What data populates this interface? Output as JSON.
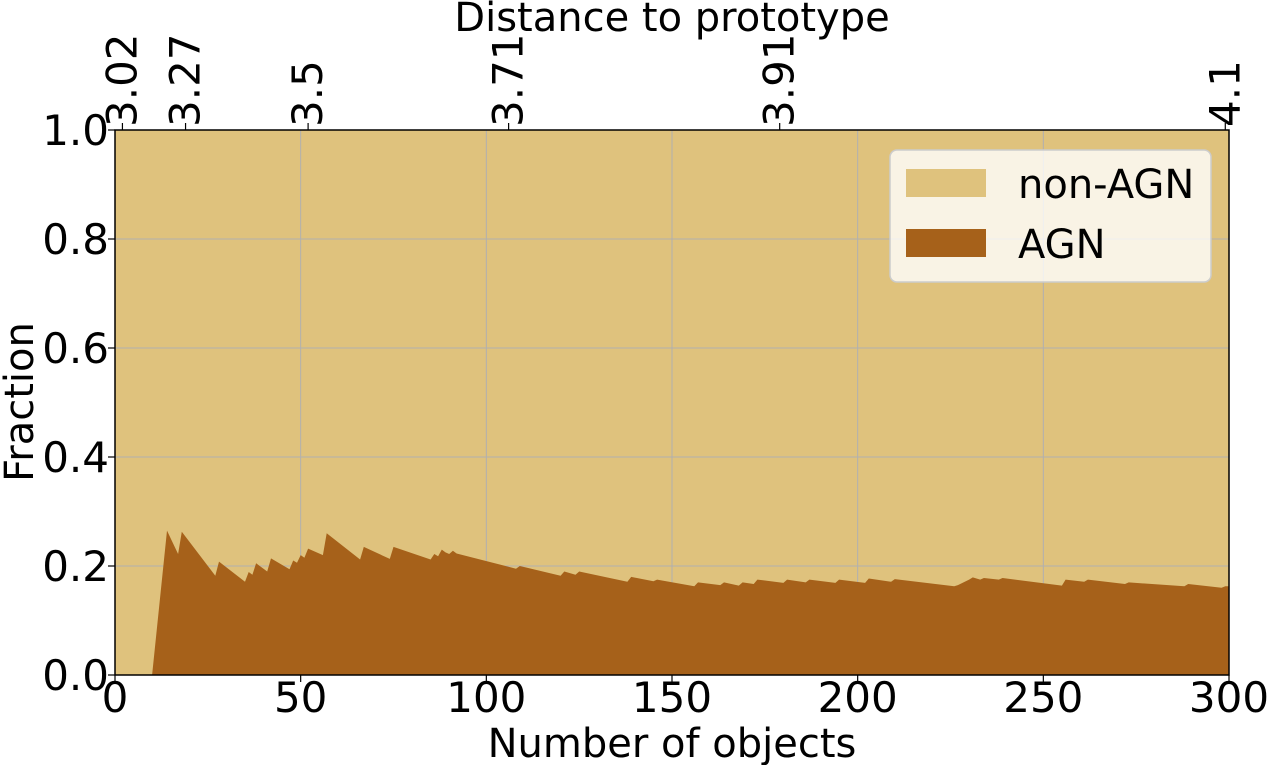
{
  "chart_data": {
    "type": "area",
    "xlabel": "Number of objects",
    "ylabel": "Fraction",
    "top_xlabel": "Distance to prototype",
    "xlim": [
      0,
      300
    ],
    "ylim": [
      0,
      1
    ],
    "xticks": [
      0,
      50,
      100,
      150,
      200,
      250,
      300
    ],
    "yticks": [
      0.0,
      0.2,
      0.4,
      0.6,
      0.8,
      1.0
    ],
    "xtick_labels": [
      "0",
      "50",
      "100",
      "150",
      "200",
      "250",
      "300"
    ],
    "ytick_labels": [
      "0.0",
      "0.2",
      "0.4",
      "0.6",
      "0.8",
      "1.0"
    ],
    "top_ticks": [
      {
        "x": 2,
        "label": "3.02"
      },
      {
        "x": 19,
        "label": "3.27"
      },
      {
        "x": 52,
        "label": "3.5"
      },
      {
        "x": 106,
        "label": "3.71"
      },
      {
        "x": 179,
        "label": "3.91"
      },
      {
        "x": 299,
        "label": "4.1"
      }
    ],
    "grid": true,
    "legend_position": "top-right",
    "colors": {
      "non_agn": "#dfc27d",
      "agn": "#a6611a"
    },
    "series": [
      {
        "name": "non-AGN",
        "type": "stacked-top"
      },
      {
        "name": "AGN",
        "x": [
          0,
          10,
          14,
          17,
          18,
          27,
          28,
          35,
          36,
          37,
          38,
          39,
          40,
          41,
          42,
          47,
          48,
          49,
          50,
          51,
          52,
          56,
          57,
          66,
          67,
          74,
          75,
          85,
          86,
          87,
          88,
          89,
          90,
          91,
          92,
          108,
          109,
          120,
          121,
          124,
          125,
          138,
          139,
          145,
          146,
          156,
          157,
          163,
          164,
          168,
          169,
          172,
          173,
          180,
          181,
          186,
          187,
          194,
          195,
          202,
          203,
          209,
          210,
          226,
          227,
          230,
          231,
          233,
          234,
          238,
          239,
          255,
          256,
          261,
          262,
          272,
          273,
          288,
          289,
          298,
          299,
          300
        ],
        "values": [
          0,
          0,
          0.265,
          0.222,
          0.263,
          0.182,
          0.208,
          0.171,
          0.189,
          0.184,
          0.205,
          0.2,
          0.195,
          0.19,
          0.214,
          0.194,
          0.21,
          0.206,
          0.22,
          0.215,
          0.232,
          0.22,
          0.26,
          0.212,
          0.235,
          0.213,
          0.235,
          0.212,
          0.222,
          0.218,
          0.23,
          0.225,
          0.222,
          0.228,
          0.223,
          0.195,
          0.2,
          0.182,
          0.19,
          0.184,
          0.19,
          0.171,
          0.18,
          0.172,
          0.175,
          0.163,
          0.17,
          0.165,
          0.17,
          0.164,
          0.17,
          0.167,
          0.175,
          0.169,
          0.175,
          0.17,
          0.175,
          0.169,
          0.175,
          0.169,
          0.177,
          0.171,
          0.176,
          0.163,
          0.165,
          0.175,
          0.179,
          0.175,
          0.178,
          0.175,
          0.178,
          0.164,
          0.175,
          0.171,
          0.175,
          0.167,
          0.17,
          0.163,
          0.167,
          0.16,
          0.163,
          0.163
        ]
      }
    ]
  }
}
